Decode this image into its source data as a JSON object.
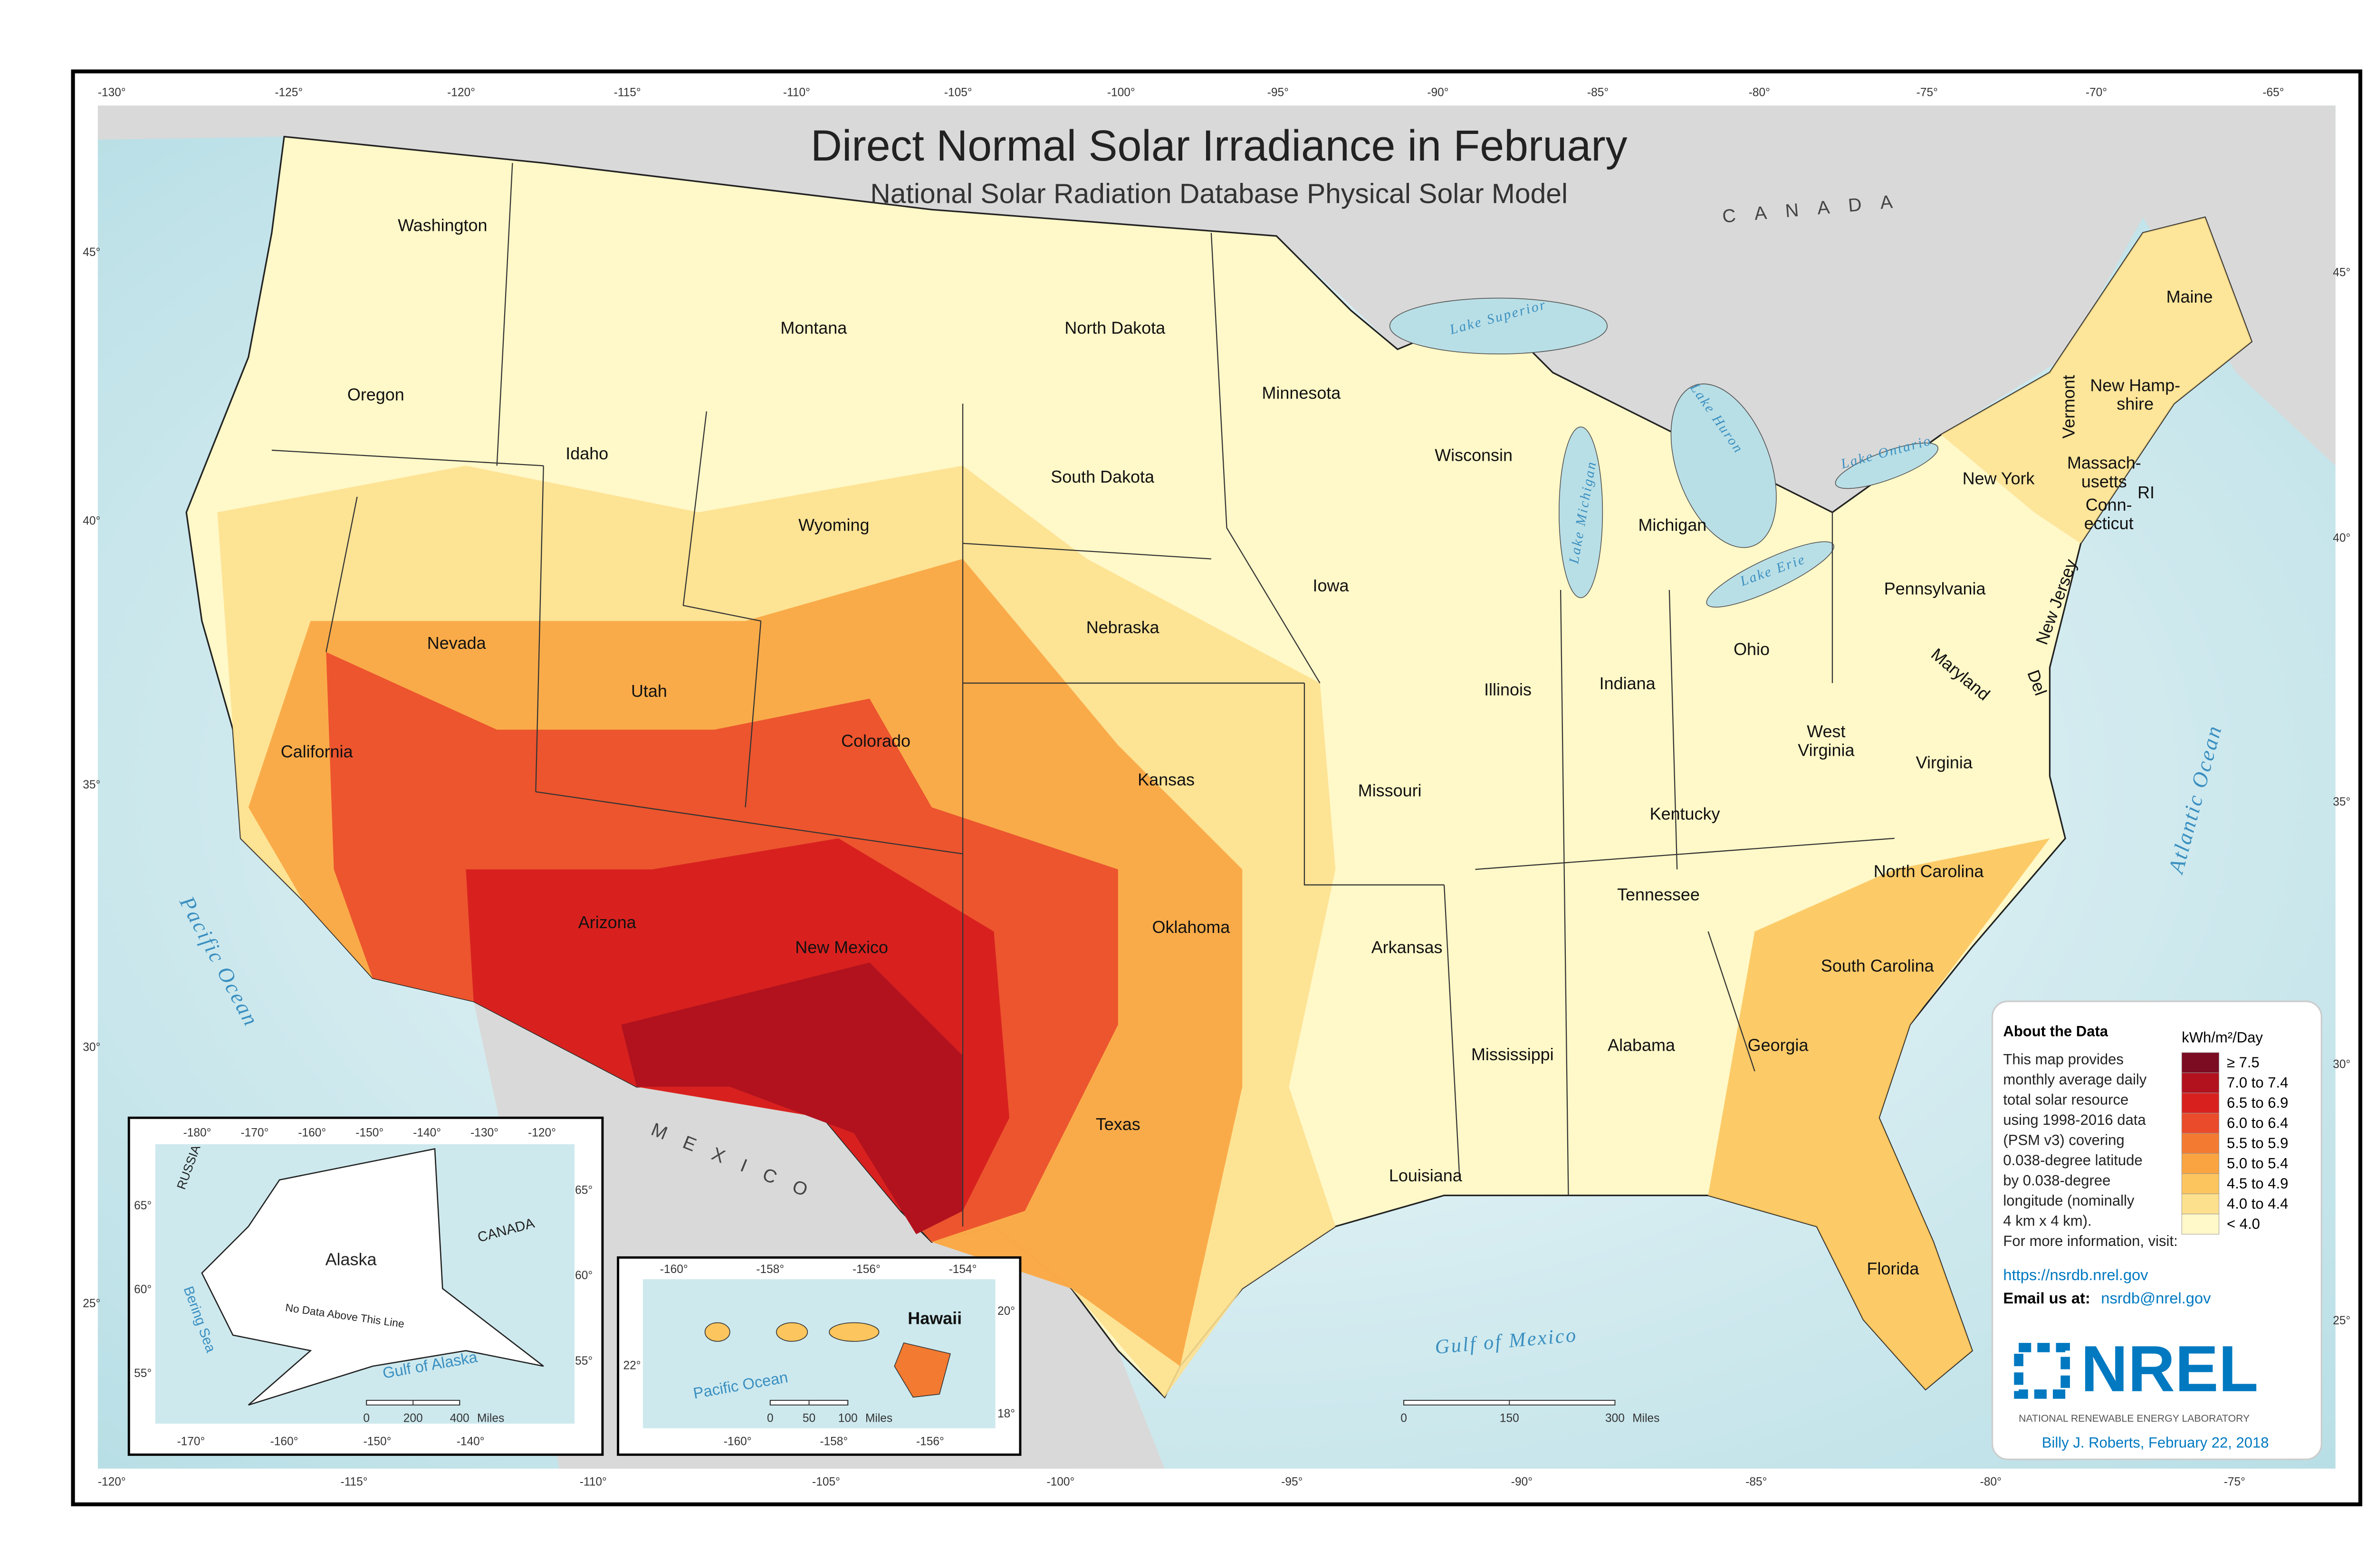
{
  "title": "Direct Normal Solar Irradiance in February",
  "subtitle": "National Solar Radiation Database Physical Solar Model",
  "countries": [
    "CANADA",
    "MEXICO"
  ],
  "water_labels": [
    "Pacific Ocean",
    "Atlantic Ocean",
    "Gulf of Mexico",
    "Lake Superior",
    "Lake Michigan",
    "Lake Huron",
    "Lake Ontario",
    "Lake Erie"
  ],
  "states": [
    "Washington",
    "Oregon",
    "Montana",
    "North Dakota",
    "Minnesota",
    "South Dakota",
    "Wyoming",
    "Idaho",
    "Nevada",
    "Utah",
    "California",
    "Colorado",
    "Arizona",
    "New Mexico",
    "Nebraska",
    "Kansas",
    "Oklahoma",
    "Texas",
    "Iowa",
    "Missouri",
    "Arkansas",
    "Louisiana",
    "Mississippi",
    "Alabama",
    "Tennessee",
    "Kentucky",
    "Illinois",
    "Indiana",
    "Ohio",
    "Michigan",
    "Wisconsin",
    [
      "West",
      "Virginia"
    ],
    "Virginia",
    "North Carolina",
    "South Carolina",
    "Georgia",
    "Florida",
    "Pennsylvania",
    "New York",
    "Maine",
    "Vermont",
    [
      "New Hamp-",
      "shire"
    ],
    [
      "Massach-",
      "usetts"
    ],
    [
      "Conn-",
      "ecticut"
    ],
    "RI",
    "New Jersey",
    "Del",
    "Maryland"
  ],
  "longitude_top": [
    "-130°",
    "-125°",
    "-120°",
    "-115°",
    "-110°",
    "-105°",
    "-100°",
    "-95°",
    "-90°",
    "-85°",
    "-80°",
    "-75°",
    "-70°",
    "-65°"
  ],
  "longitude_bottom": [
    "-120°",
    "-115°",
    "-110°",
    "-105°",
    "-100°",
    "-95°",
    "-90°",
    "-85°",
    "-80°",
    "-75°"
  ],
  "latitude_left": [
    "45°",
    "40°",
    "35°",
    "30°",
    "25°"
  ],
  "latitude_right": [
    "45°",
    "40°",
    "35°",
    "30°",
    "25°"
  ],
  "legend": {
    "title": "kWh/m²/Day",
    "items": [
      {
        "label": "≥ 7.5",
        "color": "#7b0c22"
      },
      {
        "label": "7.0 to 7.4",
        "color": "#b1121e"
      },
      {
        "label": "6.5 to 6.9",
        "color": "#d8211f"
      },
      {
        "label": "6.0 to 6.4",
        "color": "#ea4b2b"
      },
      {
        "label": "5.5 to 5.9",
        "color": "#f37a31"
      },
      {
        "label": "5.0 to 5.4",
        "color": "#f9a440"
      },
      {
        "label": "4.5 to 4.9",
        "color": "#fcc55d"
      },
      {
        "label": "4.0 to 4.4",
        "color": "#fde08e"
      },
      {
        "label": "< 4.0",
        "color": "#fff8c8"
      }
    ]
  },
  "about": {
    "heading": "About the Data",
    "lines": [
      "This map provides",
      "monthly average daily",
      "total solar resource",
      "using 1998-2016 data",
      "(PSM v3) covering",
      "0.038-degree latitude",
      "by 0.038-degree",
      "longitude (nominally",
      "4 km x 4 km).",
      "For more information, visit:"
    ],
    "link": "https://nsrdb.nrel.gov",
    "email_label": "Email us at:",
    "email": "nsrdb@nrel.gov"
  },
  "logo": {
    "name": "NREL",
    "tagline": "NATIONAL RENEWABLE ENERGY LABORATORY"
  },
  "credit": "Billy J. Roberts,  February 22, 2018",
  "scale": {
    "ticks": [
      0,
      150,
      300
    ],
    "unit": "Miles"
  },
  "alaska_inset": {
    "labels": [
      "Alaska",
      "RUSSIA",
      "CANADA",
      "Bering Sea",
      "Gulf of Alaska",
      "No Data Above This Line"
    ],
    "lon_top": [
      "-180°",
      "-170°",
      "-160°",
      "-150°",
      "-140°",
      "-130°",
      "-120°"
    ],
    "lon_bottom": [
      "-170°",
      "-160°",
      "-150°",
      "-140°"
    ],
    "lat_left": [
      "65°",
      "60°",
      "55°"
    ],
    "lat_right": [
      "65°",
      "60°",
      "55°"
    ],
    "scale": [
      0,
      200,
      400
    ],
    "unit": "Miles"
  },
  "hawaii_inset": {
    "labels": [
      "Hawaii",
      "Pacific Ocean"
    ],
    "lon_top": [
      "-160°",
      "-158°",
      "-156°",
      "-154°"
    ],
    "lon_bottom": [
      "-160°",
      "-158°",
      "-156°"
    ],
    "lat_left": [
      "22°"
    ],
    "lat_right": [
      "20°",
      "18°"
    ],
    "scale": [
      0,
      50,
      100
    ],
    "unit": "Miles"
  }
}
